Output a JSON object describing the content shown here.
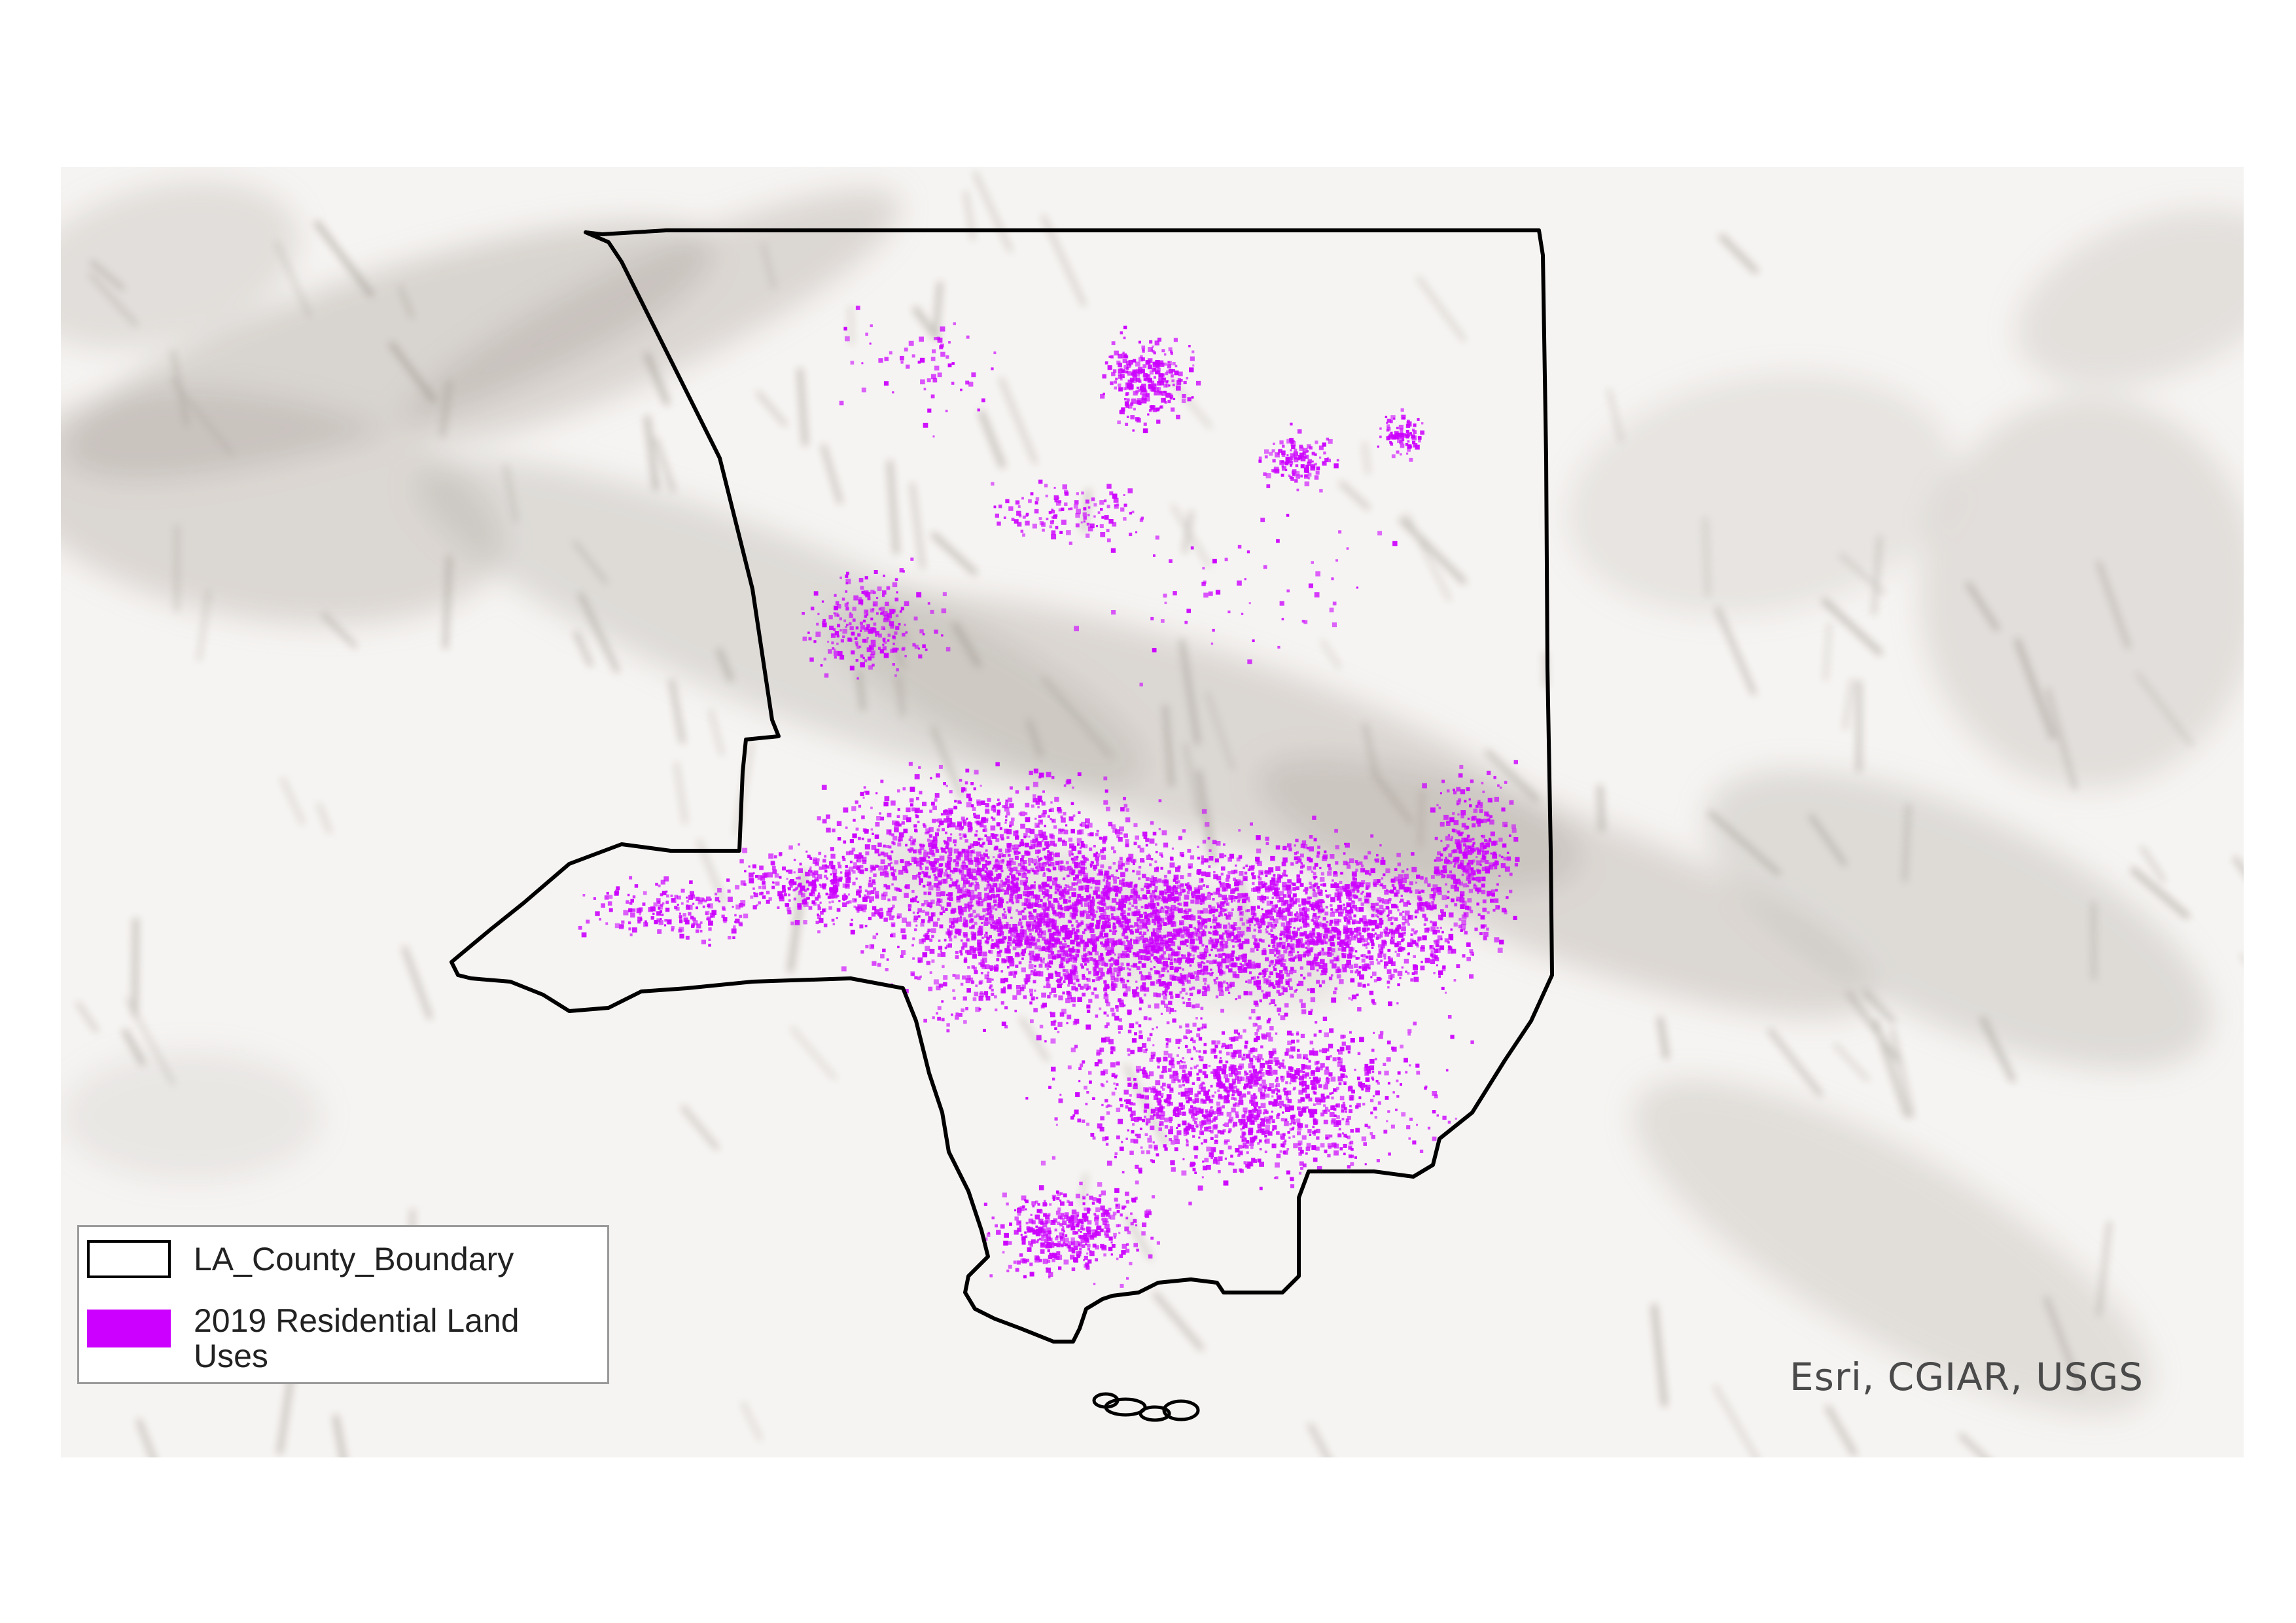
{
  "map": {
    "basemap": "hillshade-terrain",
    "layers": [
      {
        "name": "LA_County_Boundary",
        "style": "outline",
        "color": "#000000"
      },
      {
        "name": "2019 Residential Land Uses",
        "style": "fill",
        "color": "#cc00ff"
      }
    ]
  },
  "legend": {
    "items": [
      {
        "label": "LA_County_Boundary",
        "swatch": "outline",
        "color": "#000000"
      },
      {
        "label": "2019 Residential Land Uses",
        "swatch": "fill",
        "color": "#cc00ff"
      }
    ]
  },
  "attribution": "Esri, CGIAR, USGS",
  "colors": {
    "residential": "#cc00ff",
    "boundary": "#000000",
    "terrain_light": "#f6f4f2",
    "terrain_dark": "#b3ada5"
  }
}
